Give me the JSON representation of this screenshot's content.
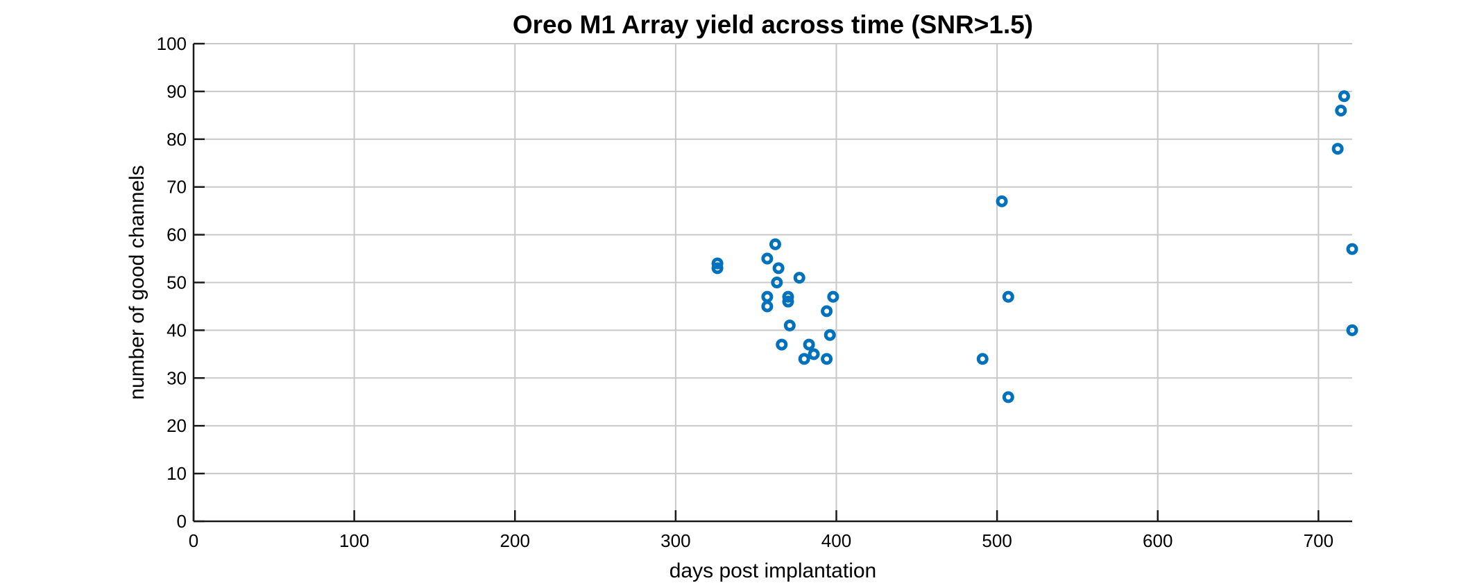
{
  "chart_data": {
    "type": "scatter",
    "title": "Oreo M1 Array yield across time (SNR>1.5)",
    "xlabel": "days post implantation",
    "ylabel": "number of good channels",
    "xlim": [
      0,
      721
    ],
    "ylim": [
      0,
      100
    ],
    "xticks": [
      0,
      100,
      200,
      300,
      400,
      500,
      600,
      700
    ],
    "yticks": [
      0,
      10,
      20,
      30,
      40,
      50,
      60,
      70,
      80,
      90,
      100
    ],
    "grid": true,
    "marker": "circle-open",
    "color": "#0072BD",
    "points": [
      {
        "x": 326,
        "y": 54
      },
      {
        "x": 326,
        "y": 53
      },
      {
        "x": 357,
        "y": 55
      },
      {
        "x": 357,
        "y": 47
      },
      {
        "x": 357,
        "y": 45
      },
      {
        "x": 362,
        "y": 58
      },
      {
        "x": 363,
        "y": 50
      },
      {
        "x": 364,
        "y": 53
      },
      {
        "x": 366,
        "y": 37
      },
      {
        "x": 370,
        "y": 47
      },
      {
        "x": 370,
        "y": 46
      },
      {
        "x": 371,
        "y": 41
      },
      {
        "x": 377,
        "y": 51
      },
      {
        "x": 380,
        "y": 34
      },
      {
        "x": 383,
        "y": 37
      },
      {
        "x": 386,
        "y": 35
      },
      {
        "x": 394,
        "y": 44
      },
      {
        "x": 394,
        "y": 34
      },
      {
        "x": 396,
        "y": 39
      },
      {
        "x": 398,
        "y": 47
      },
      {
        "x": 491,
        "y": 34
      },
      {
        "x": 503,
        "y": 67
      },
      {
        "x": 507,
        "y": 47
      },
      {
        "x": 507,
        "y": 26
      },
      {
        "x": 712,
        "y": 78
      },
      {
        "x": 714,
        "y": 86
      },
      {
        "x": 716,
        "y": 89
      },
      {
        "x": 721,
        "y": 57
      },
      {
        "x": 721,
        "y": 40
      }
    ]
  }
}
